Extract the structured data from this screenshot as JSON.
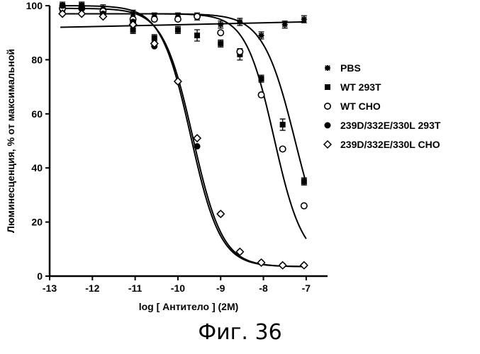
{
  "chart_data": {
    "type": "scatter",
    "title": "",
    "xlabel": "log [ Антитело ] (2M)",
    "ylabel": "Люминесценция, % от максимальной",
    "xlim": [
      -13,
      -6.5
    ],
    "ylim": [
      0,
      100
    ],
    "xticks": [
      "-13",
      "-12",
      "-11",
      "-10",
      "-9",
      "-8",
      "-7"
    ],
    "yticks": [
      "0",
      "20",
      "40",
      "60",
      "80",
      "100"
    ],
    "legend_position": "right",
    "series": [
      {
        "name": "PBS",
        "marker": "asterisk",
        "x": [
          -12.7,
          -12.25,
          -11.75,
          -11.05,
          -10.55,
          -10.0,
          -9.55,
          -9.0,
          -8.55,
          -8.05,
          -7.5,
          -7.05
        ],
        "y": [
          98,
          100,
          99,
          97,
          96,
          96,
          96,
          93,
          94,
          89,
          93,
          95
        ],
        "curve": {
          "kind": "linear",
          "x0": -12.75,
          "y0": 92,
          "x1": -7.0,
          "y1": 94
        }
      },
      {
        "name": "WT 293T",
        "marker": "filled-square",
        "x": [
          -12.7,
          -12.25,
          -11.75,
          -11.05,
          -10.55,
          -10.0,
          -9.55,
          -9.0,
          -8.55,
          -8.05,
          -7.55,
          -7.05
        ],
        "y": [
          100,
          100,
          97,
          91,
          88,
          91,
          89,
          86,
          82,
          73,
          56,
          35
        ],
        "curve": {
          "kind": "logistic",
          "top": 97,
          "bottom": 2,
          "ec50_log": -7.25,
          "hill": 1.15
        }
      },
      {
        "name": "WT CHO",
        "marker": "open-circle",
        "x": [
          -12.7,
          -12.25,
          -11.75,
          -11.05,
          -10.55,
          -10.0,
          -9.55,
          -9.0,
          -8.55,
          -8.05,
          -7.55,
          -7.05
        ],
        "y": [
          99,
          99,
          98,
          95,
          95,
          95,
          96,
          90,
          83,
          67,
          47,
          26
        ],
        "curve": {
          "kind": "logistic",
          "top": 97,
          "bottom": 5,
          "ec50_log": -7.75,
          "hill": 1.3
        }
      },
      {
        "name": "239D/332E/330L 293T",
        "marker": "filled-circle",
        "x": [
          -12.7,
          -12.25,
          -11.75,
          -11.05,
          -10.55,
          -10.0,
          -9.55,
          -9.0,
          -8.55,
          -8.05,
          -7.55,
          -7.05
        ],
        "y": [
          100,
          99,
          97,
          94,
          85,
          72,
          48,
          23,
          9,
          5,
          4,
          4
        ],
        "curve": {
          "kind": "logistic",
          "top": 100,
          "bottom": 3.5,
          "ec50_log": -9.7,
          "hill": 1.25
        }
      },
      {
        "name": "239D/332E/330L CHO",
        "marker": "open-diamond",
        "x": [
          -12.7,
          -12.25,
          -11.75,
          -11.05,
          -10.55,
          -10.0,
          -9.55,
          -9.0,
          -8.55,
          -8.05,
          -7.55,
          -7.05
        ],
        "y": [
          97,
          97,
          96,
          93,
          86,
          72,
          51,
          23,
          9,
          5,
          4,
          4
        ],
        "curve": {
          "kind": "logistic",
          "top": 99,
          "bottom": 3.5,
          "ec50_log": -9.65,
          "hill": 1.25
        }
      }
    ]
  },
  "caption": "Фиг. 36"
}
